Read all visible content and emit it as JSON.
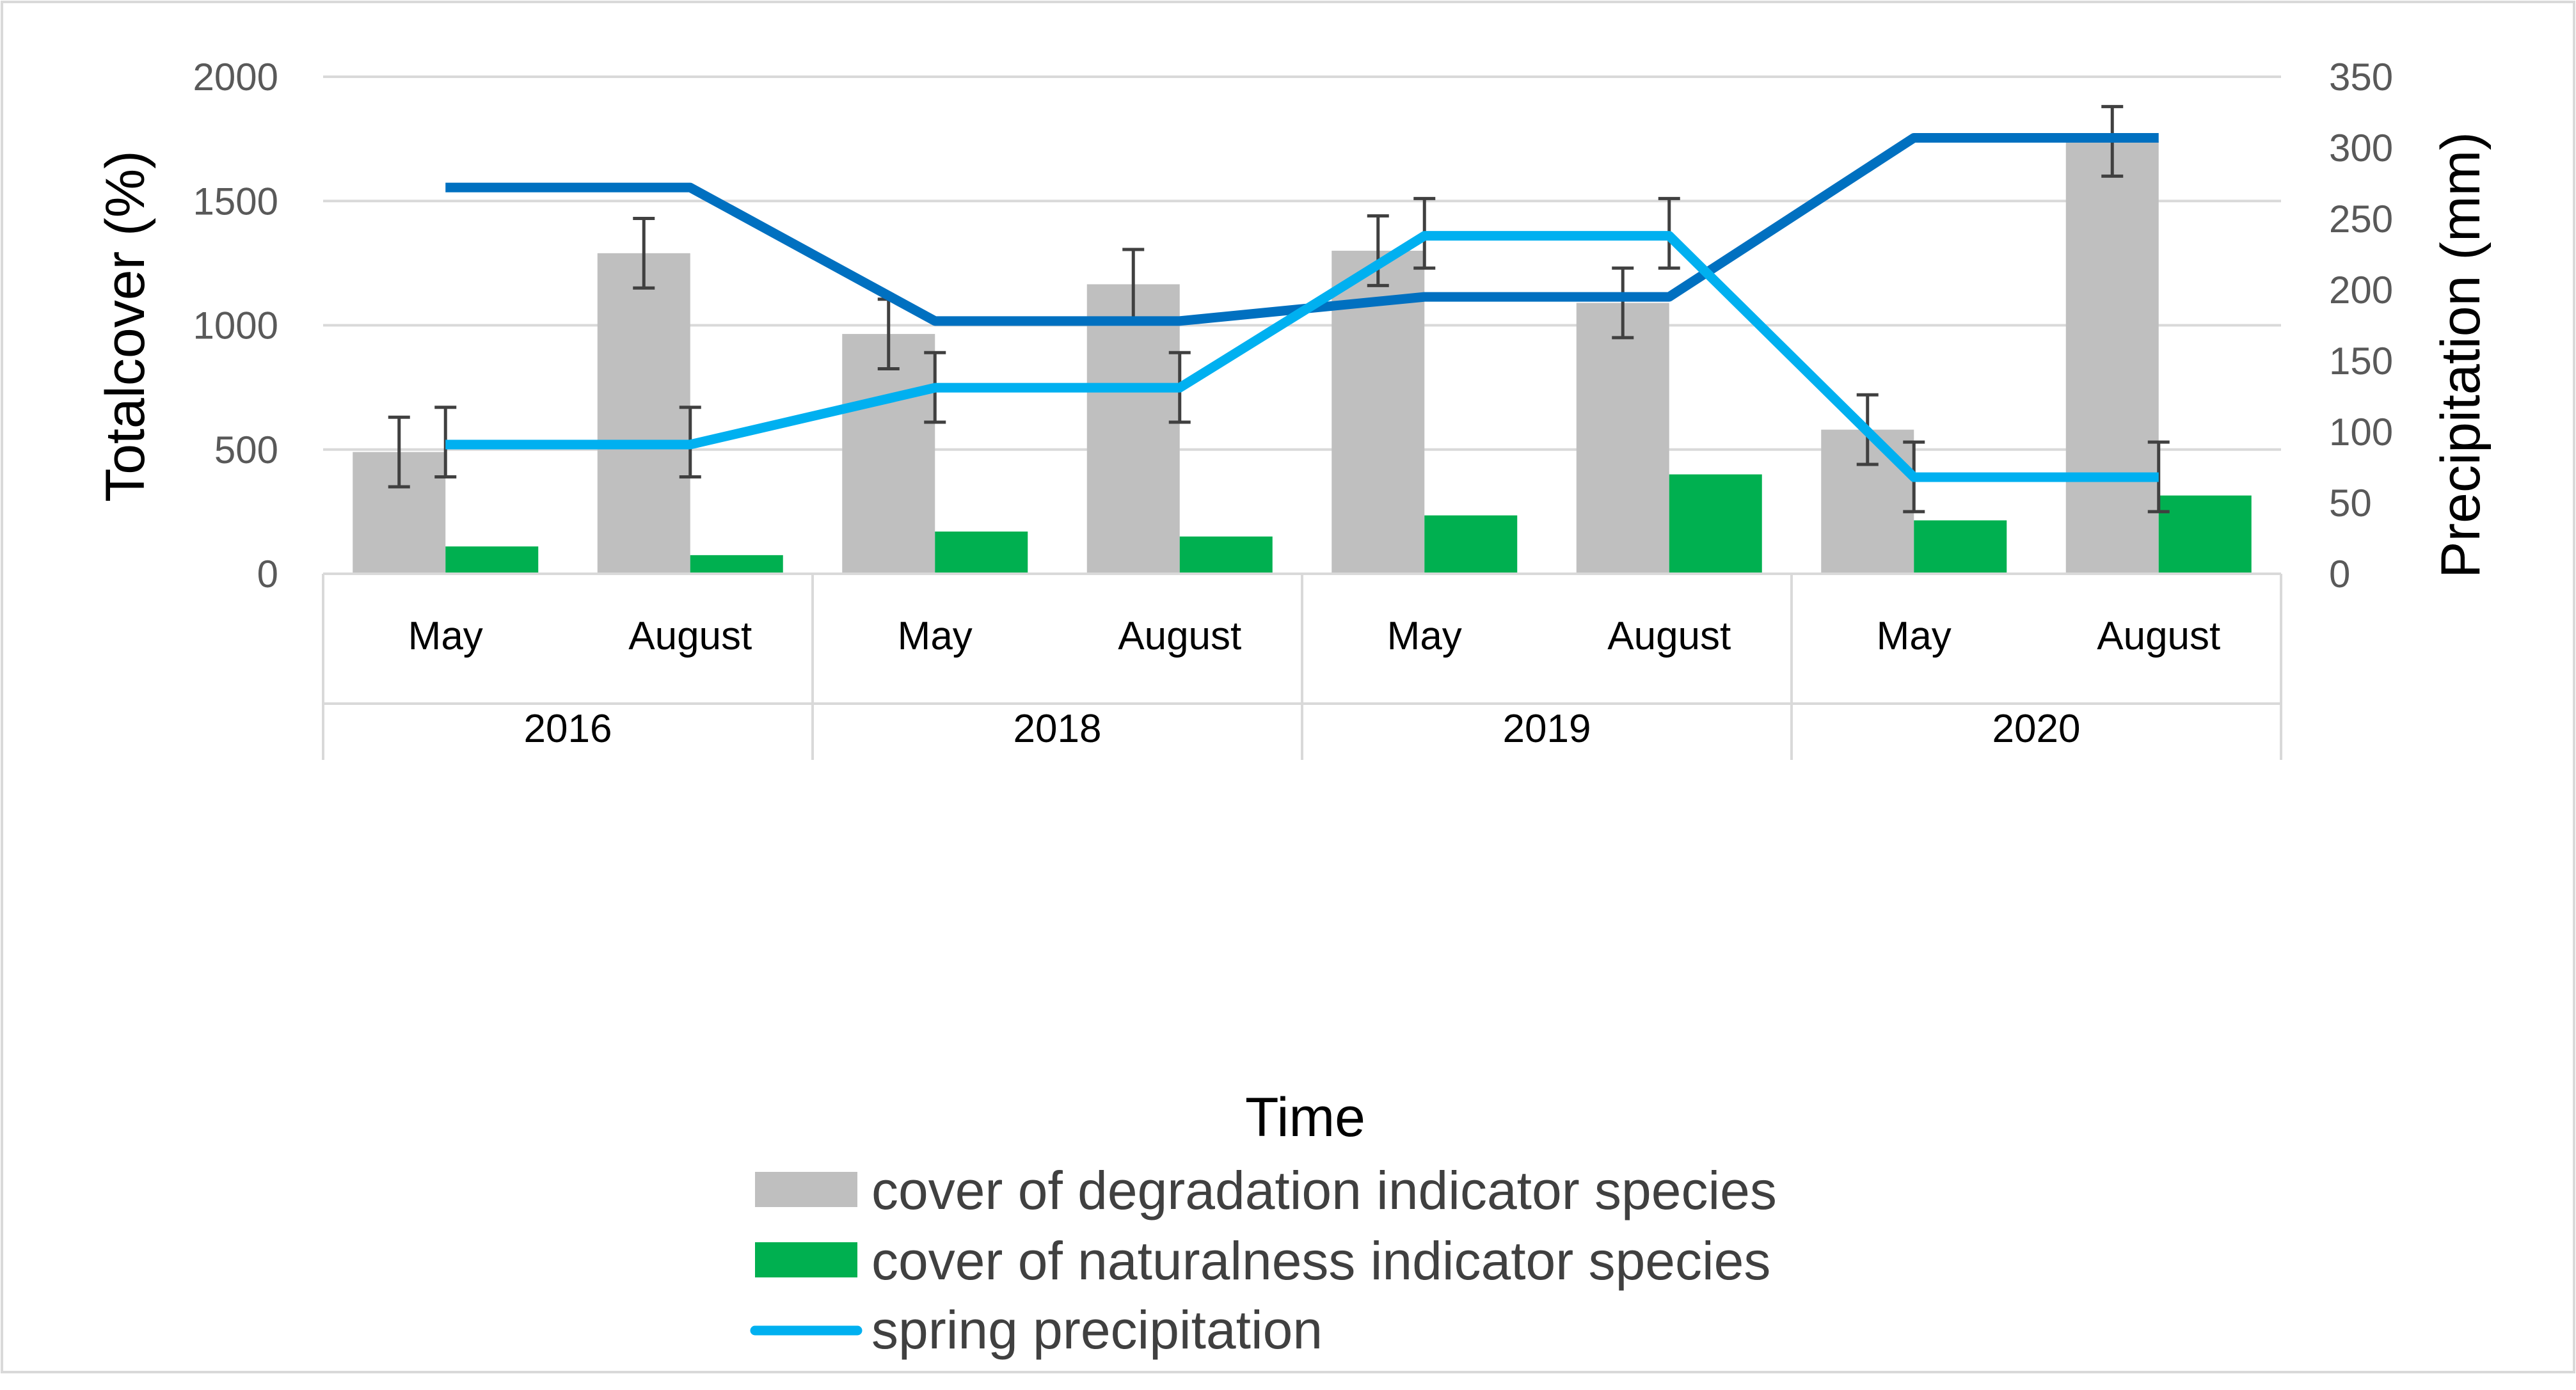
{
  "chart_data": {
    "type": "bar",
    "categories": [
      "May",
      "August",
      "May",
      "August",
      "May",
      "August",
      "May",
      "August"
    ],
    "groups": [
      "2016",
      "2018",
      "2019",
      "2020"
    ],
    "xlabel": "Time",
    "ylabel": "Totalcover (%)",
    "y2label": "Precipitation  (mm)",
    "ylim": [
      0,
      2000
    ],
    "yticks": [
      "0",
      "500",
      "1000",
      "1500",
      "2000"
    ],
    "y2lim": [
      0,
      350
    ],
    "y2ticks": [
      "0",
      "50",
      "100",
      "150",
      "200",
      "250",
      "300",
      "350"
    ],
    "grid": true,
    "legend_position": "bottom",
    "series": [
      {
        "name": "cover of degradation indicator species",
        "kind": "bar",
        "axis": "left",
        "color": "#bfbfbf",
        "values": [
          490,
          1290,
          965,
          1165,
          1300,
          1090,
          580,
          1740
        ],
        "error": [
          140,
          140,
          140,
          140,
          140,
          140,
          140,
          140
        ]
      },
      {
        "name": "cover of naturalness indicator species",
        "kind": "bar",
        "axis": "left",
        "color": "#00b050",
        "values": [
          110,
          75,
          170,
          150,
          235,
          400,
          215,
          315
        ],
        "error": [
          null,
          null,
          null,
          null,
          null,
          null,
          null,
          null
        ],
        "error_at": [
          530,
          530,
          750,
          750,
          1370,
          1370,
          390,
          390
        ],
        "error_half": [
          140,
          140,
          140,
          140,
          140,
          140,
          140,
          140
        ]
      },
      {
        "name": "spring precipitation",
        "kind": "line",
        "axis": "right",
        "color": "#00b0f0",
        "values": [
          91,
          91,
          131,
          131,
          238,
          238,
          68,
          68
        ]
      },
      {
        "name": "",
        "kind": "line",
        "axis": "right",
        "color": "#0070c0",
        "values": [
          272,
          272,
          178,
          178,
          195,
          195,
          307,
          307
        ]
      }
    ]
  }
}
